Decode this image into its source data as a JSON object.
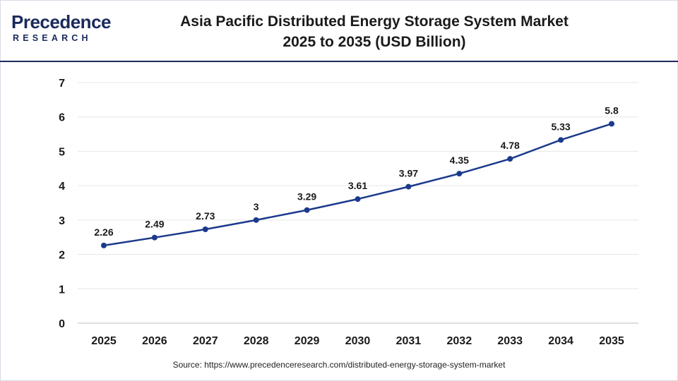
{
  "brand": {
    "logo_main": "Precedence",
    "logo_sub": "RESEARCH",
    "color": "#1b2a5c"
  },
  "header": {
    "title_line1": "Asia Pacific Distributed Energy Storage System Market",
    "title_line2": "2025 to 2035  (USD Billion)"
  },
  "chart_data": {
    "type": "line",
    "categories": [
      "2025",
      "2026",
      "2027",
      "2028",
      "2029",
      "2030",
      "2031",
      "2032",
      "2033",
      "2034",
      "2035"
    ],
    "values": [
      2.26,
      2.49,
      2.73,
      3,
      3.29,
      3.61,
      3.97,
      4.35,
      4.78,
      5.33,
      5.8
    ],
    "data_labels": [
      "2.26",
      "2.49",
      "2.73",
      "3",
      "3.29",
      "3.61",
      "3.97",
      "4.35",
      "4.78",
      "5.33",
      "5.8"
    ],
    "ylim": [
      0,
      7
    ],
    "yticks": [
      "0",
      "1",
      "2",
      "3",
      "4",
      "5",
      "6",
      "7"
    ],
    "grid": true,
    "line_color": "#1b3a8c",
    "grid_color": "#e6e6e6"
  },
  "footer": {
    "source": "Source: https://www.precedenceresearch.com/distributed-energy-storage-system-market"
  }
}
